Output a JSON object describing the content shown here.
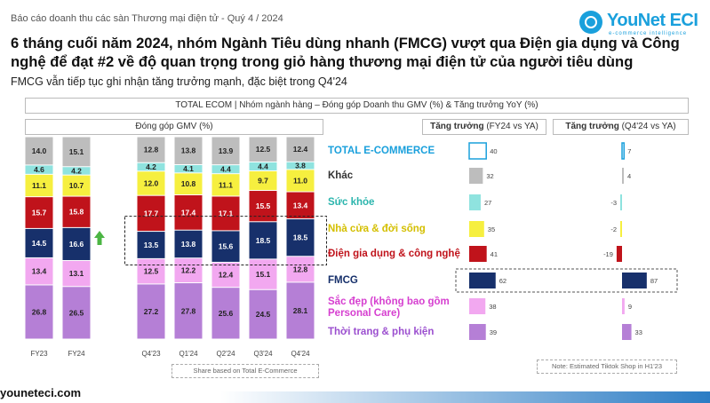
{
  "header": {
    "report_label": "Báo cáo doanh thu các sàn Thương mại điện tử - Quý 4 / 2024",
    "brand_name": "YouNet ECI",
    "brand_tagline": "e-commerce intelligence",
    "headline": "6 tháng cuối năm 2024, nhóm Ngành Tiêu dùng nhanh (FMCG) vượt qua Điện gia dụng và Công nghệ để đạt #2 về độ quan trọng  trong giỏ hàng thương mại điện tử của người tiêu dùng",
    "subheadline": "FMCG vẫn tiếp tục ghi nhận tăng trưởng mạnh, đặc biệt trong Q4'24"
  },
  "panel_headers": {
    "total_ecom": "TOTAL ECOM | Nhóm ngành hàng – Đóng góp Doanh thu GMV (%) & Tăng trưởng YoY (%)",
    "gmv": "Đóng góp GMV (%)",
    "growth_fy_bold": "Tăng trưởng",
    "growth_fy_rest": " (FY24 vs YA)",
    "growth_q_bold": "Tăng trưởng",
    "growth_q_rest": " (Q4'24 vs YA)"
  },
  "chart_data": [
    {
      "type": "bar",
      "stacked": true,
      "title": "Đóng góp GMV (%)",
      "categories": [
        "FY23",
        "FY24",
        "Q4'23",
        "Q1'24",
        "Q2'24",
        "Q3'24",
        "Q4'24"
      ],
      "series": [
        {
          "name": "Thời trang & phụ kiện",
          "color": "#b57fd6",
          "values": [
            26.8,
            26.5,
            27.2,
            27.8,
            25.6,
            24.5,
            28.1
          ]
        },
        {
          "name": "Sắc đẹp (không bao gồm Personal Care)",
          "color": "#f2a8f0",
          "values": [
            13.4,
            13.1,
            12.5,
            12.2,
            12.4,
            15.1,
            12.8
          ]
        },
        {
          "name": "FMCG",
          "color": "#17306b",
          "values": [
            14.5,
            16.6,
            13.5,
            13.8,
            15.6,
            18.5,
            18.5
          ]
        },
        {
          "name": "Điện gia dụng & công nghệ",
          "color": "#c0131b",
          "values": [
            15.7,
            15.8,
            17.7,
            17.4,
            17.1,
            15.5,
            13.4
          ]
        },
        {
          "name": "Nhà cửa & đời sống",
          "color": "#f6ef3f",
          "values": [
            11.1,
            10.7,
            12.0,
            10.8,
            11.1,
            9.7,
            11.0
          ]
        },
        {
          "name": "Sức khỏe",
          "color": "#8fe3df",
          "values": [
            4.6,
            4.2,
            4.2,
            4.1,
            4.4,
            4.4,
            3.8
          ]
        },
        {
          "name": "Khác",
          "color": "#bdbdbd",
          "values": [
            14.0,
            15.1,
            12.8,
            13.8,
            13.9,
            12.5,
            12.4
          ]
        }
      ],
      "ylim": [
        0,
        100
      ],
      "highlight": "FMCG",
      "annotation": "Share based on Total E-Commerce"
    },
    {
      "type": "bar",
      "orientation": "horizontal",
      "title": "Tăng trưởng (FY24 vs YA)",
      "categories": [
        "TOTAL E-COMMERCE",
        "Khác",
        "Sức khỏe",
        "Nhà cửa & đời sống",
        "Điện gia dụng & công nghệ",
        "FMCG",
        "Sắc đẹp (không bao gồm Personal Care)",
        "Thời trang & phụ kiện"
      ],
      "values": [
        40,
        32,
        27,
        35,
        41,
        62,
        38,
        39
      ]
    },
    {
      "type": "bar",
      "orientation": "horizontal",
      "title": "Tăng trưởng (Q4'24 vs YA)",
      "categories": [
        "TOTAL E-COMMERCE",
        "Khác",
        "Sức khỏe",
        "Nhà cửa & đời sống",
        "Điện gia dụng & công nghệ",
        "FMCG",
        "Sắc đẹp (không bao gồm Personal Care)",
        "Thời trang & phụ kiện"
      ],
      "values": [
        7,
        4,
        -3,
        -2,
        -19,
        87,
        9,
        33
      ],
      "annotation": "Note: Estimated Tiktok Shop in H1'23"
    }
  ],
  "growth_rows": [
    {
      "label": "TOTAL E-COMMERCE",
      "color": "#1aa0dc",
      "fill": "#ffffff",
      "outline": "#1aa0dc",
      "label_color": "#1aa0dc"
    },
    {
      "label": "Khác",
      "color": "#bdbdbd",
      "label_color": "#333333"
    },
    {
      "label": "Sức khỏe",
      "color": "#8fe3df",
      "label_color": "#2bb5ad"
    },
    {
      "label": "Nhà cửa & đời sống",
      "color": "#f6ef3f",
      "label_color": "#d4bf00"
    },
    {
      "label": "Điện gia dụng & công nghệ",
      "color": "#c0131b",
      "label_color": "#c0131b"
    },
    {
      "label": "FMCG",
      "color": "#17306b",
      "label_color": "#17306b"
    },
    {
      "label": "Sắc đẹp (không bao gồm Personal Care)",
      "color": "#f2a8f0",
      "label_color": "#d63fd0"
    },
    {
      "label": "Thời trang & phụ kiện",
      "color": "#b57fd6",
      "label_color": "#9b4fcf"
    }
  ],
  "footer": {
    "website": "youneteci.com"
  }
}
